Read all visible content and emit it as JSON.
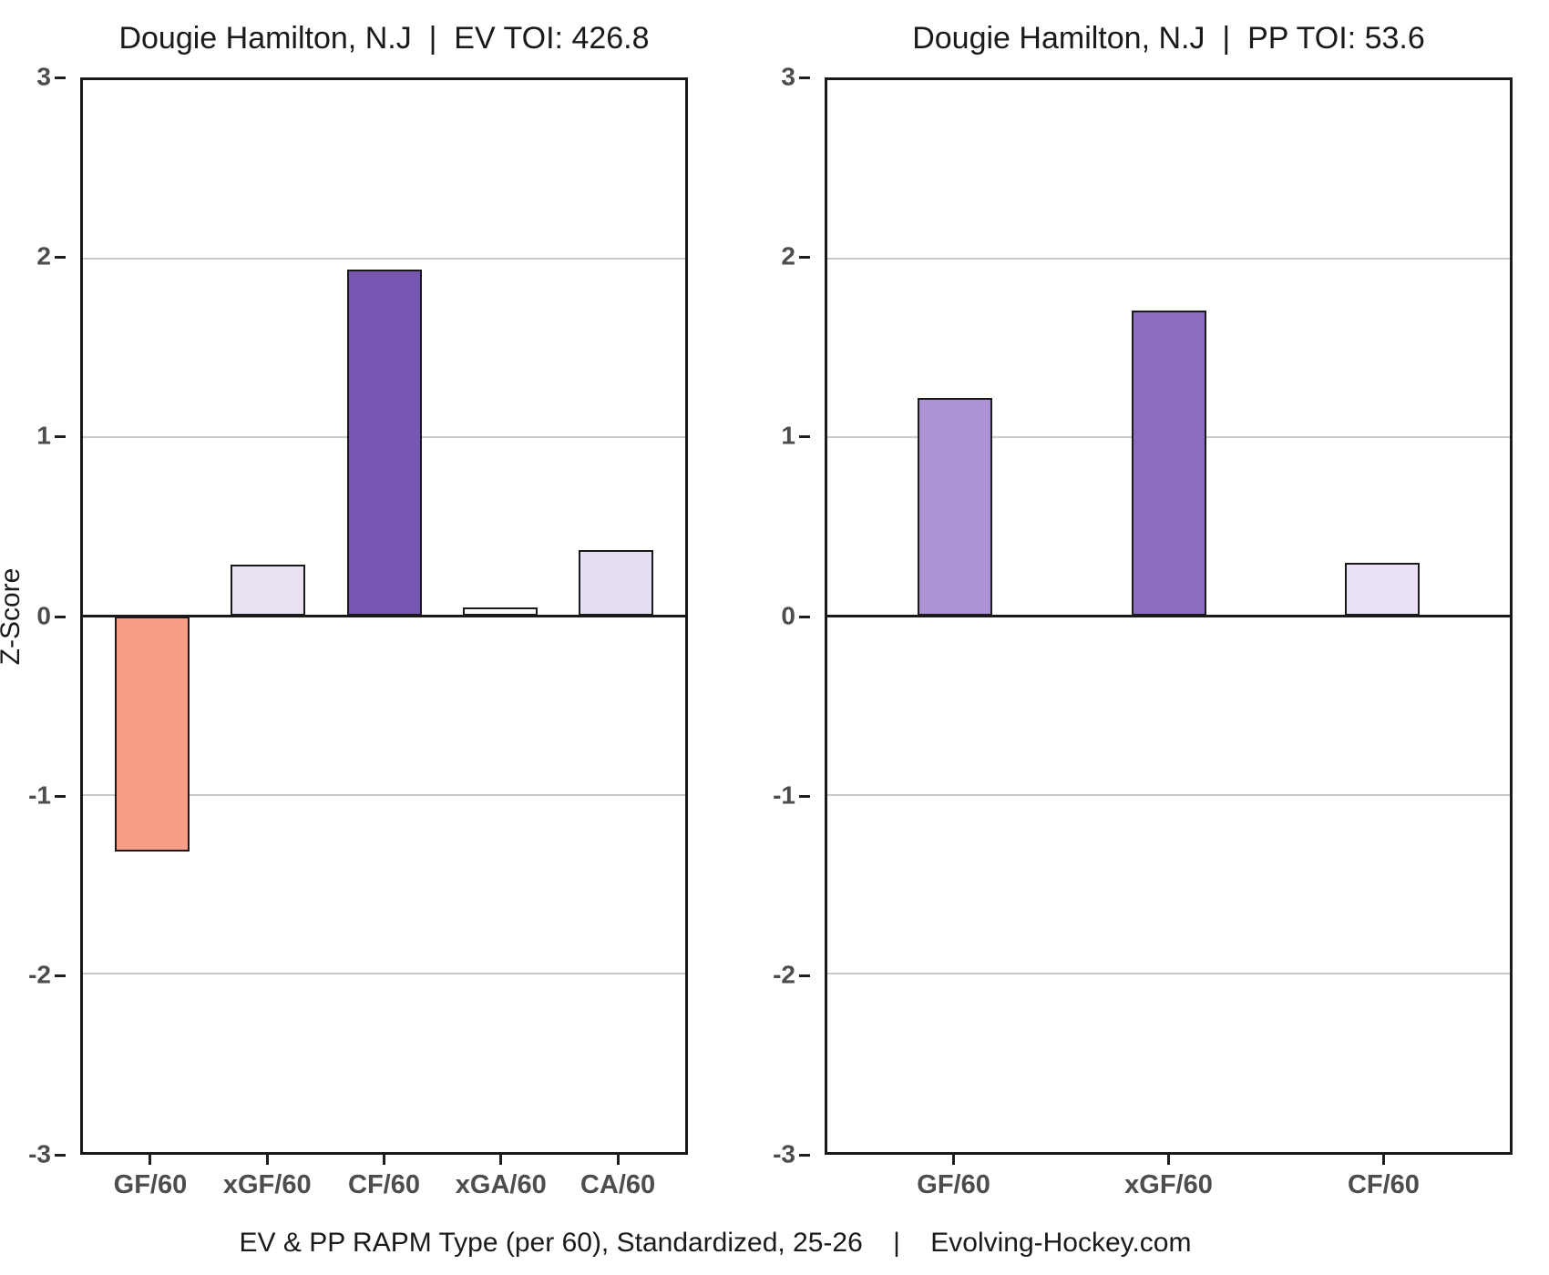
{
  "figure": {
    "caption": "EV & PP RAPM Type (per 60), Standardized, 25-26    |    Evolving-Hockey.com"
  },
  "chart_data": [
    {
      "type": "bar",
      "title": "Dougie Hamilton, N.J  |  EV TOI: 426.8",
      "ylabel": "Z-Score",
      "ylim": [
        -3,
        3
      ],
      "yticks": [
        3,
        2,
        1,
        0,
        -1,
        -2,
        -3
      ],
      "grid": true,
      "legend": null,
      "categories": [
        "GF/60",
        "xGF/60",
        "CF/60",
        "xGA/60",
        "CA/60"
      ],
      "values": [
        -1.32,
        0.29,
        1.94,
        0.05,
        0.37
      ],
      "bar_colors": [
        "#f89e88",
        "#e9e1f2",
        "#7557b2",
        "#fbf9fd",
        "#e4dcf0"
      ]
    },
    {
      "type": "bar",
      "title": "Dougie Hamilton, N.J  |  PP TOI: 53.6",
      "ylabel": "",
      "ylim": [
        -3,
        3
      ],
      "yticks": [
        3,
        2,
        1,
        0,
        -1,
        -2,
        -3
      ],
      "grid": true,
      "legend": null,
      "categories": [
        "GF/60",
        "xGF/60",
        "CF/60"
      ],
      "values": [
        1.22,
        1.71,
        0.3
      ],
      "bar_colors": [
        "#ab92d5",
        "#8a6dbf",
        "#eae2f4"
      ]
    }
  ]
}
